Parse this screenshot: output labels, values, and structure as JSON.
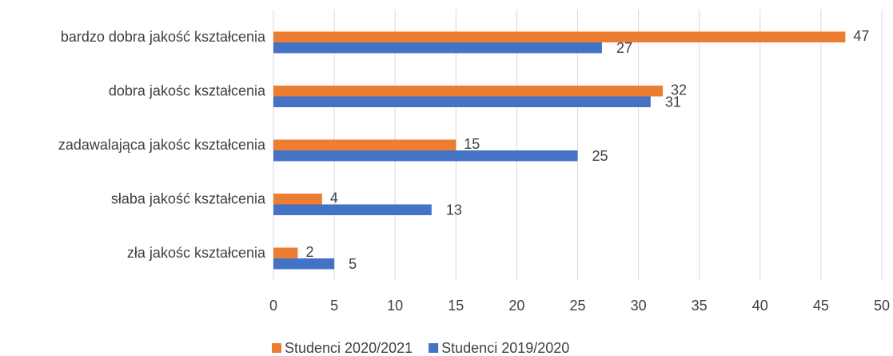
{
  "chart_data": {
    "type": "hbar",
    "categories": [
      "bardzo dobra jakość kształcenia",
      "dobra jakośc kształcenia",
      "zadawalająca jakośc kształcenia",
      "słaba jakość kształcenia",
      "zła jakośc kształcenia"
    ],
    "series": [
      {
        "name": "Studenci 2020/2021",
        "color": "#ed7d31",
        "values": [
          47,
          32,
          15,
          4,
          2
        ]
      },
      {
        "name": "Studenci 2019/2020",
        "color": "#4472c4",
        "values": [
          27,
          31,
          25,
          13,
          5
        ]
      }
    ],
    "xlim": [
      0,
      50
    ],
    "xticks": [
      0,
      5,
      10,
      15,
      20,
      25,
      30,
      35,
      40,
      45,
      50
    ],
    "grid": true,
    "legend": "bottom"
  }
}
